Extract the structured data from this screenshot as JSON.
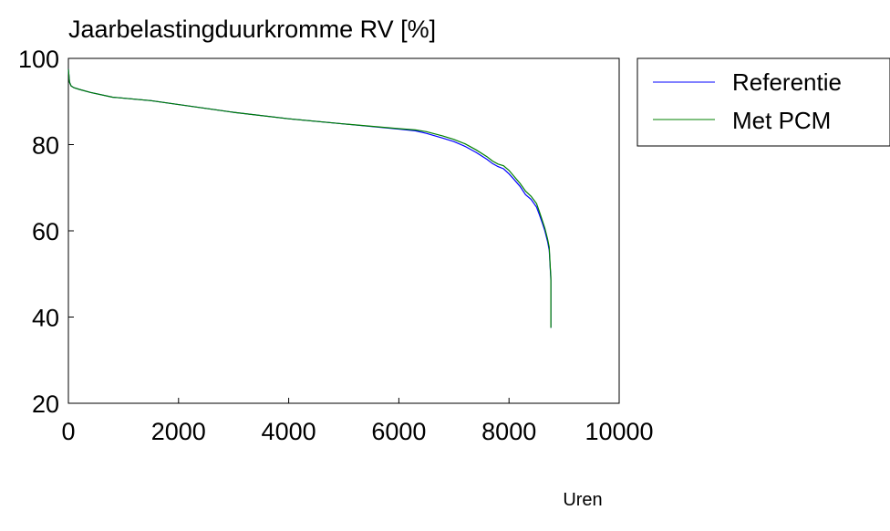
{
  "chart_data": {
    "type": "line",
    "title": "Jaarbelastingduurkromme RV [%]",
    "xlabel": "Uren",
    "ylabel": "",
    "xlim": [
      0,
      10000
    ],
    "ylim": [
      20,
      100
    ],
    "xticks": [
      0,
      2000,
      4000,
      6000,
      8000,
      10000
    ],
    "yticks": [
      20,
      40,
      60,
      80,
      100
    ],
    "xtick_labels": [
      "0",
      "2000",
      "4000",
      "6000",
      "8000",
      "10000"
    ],
    "ytick_labels": [
      "20",
      "40",
      "60",
      "80",
      "100"
    ],
    "grid": false,
    "legend_position": "outside-top-right",
    "series": [
      {
        "name": "Referentie",
        "color": "#0000ff",
        "x": [
          0,
          20,
          50,
          100,
          200,
          400,
          800,
          1500,
          3000,
          4000,
          5000,
          6000,
          6300,
          6500,
          6800,
          7000,
          7200,
          7400,
          7600,
          7700,
          7800,
          7900,
          8000,
          8100,
          8200,
          8300,
          8400,
          8500,
          8550,
          8600,
          8650,
          8700,
          8730,
          8750,
          8760,
          8760
        ],
        "y": [
          97.5,
          94.5,
          93.6,
          93.2,
          92.8,
          92.1,
          91.0,
          90.2,
          87.5,
          86.0,
          84.8,
          83.6,
          83.2,
          82.6,
          81.5,
          80.7,
          79.6,
          78.2,
          76.6,
          75.6,
          74.9,
          74.4,
          73.2,
          71.8,
          70.3,
          68.4,
          67.3,
          65.5,
          63.8,
          62.0,
          60.0,
          57.5,
          55.5,
          51.0,
          48.5,
          37.5
        ]
      },
      {
        "name": "Met PCM",
        "color": "#008000",
        "x": [
          0,
          20,
          50,
          100,
          200,
          400,
          800,
          1500,
          3000,
          4000,
          5000,
          6000,
          6300,
          6500,
          6800,
          7000,
          7200,
          7400,
          7600,
          7700,
          7800,
          7900,
          8000,
          8100,
          8200,
          8300,
          8400,
          8500,
          8550,
          8600,
          8650,
          8700,
          8730,
          8750,
          8760,
          8760
        ],
        "y": [
          97.5,
          94.5,
          93.6,
          93.2,
          92.8,
          92.1,
          91.0,
          90.2,
          87.5,
          86.0,
          84.8,
          83.7,
          83.4,
          83.0,
          82.0,
          81.2,
          80.2,
          78.8,
          77.2,
          76.2,
          75.5,
          75.1,
          74.0,
          72.5,
          71.0,
          69.2,
          68.0,
          66.3,
          64.5,
          62.6,
          60.6,
          58.1,
          56.2,
          51.3,
          49.3,
          37.5
        ]
      }
    ]
  }
}
